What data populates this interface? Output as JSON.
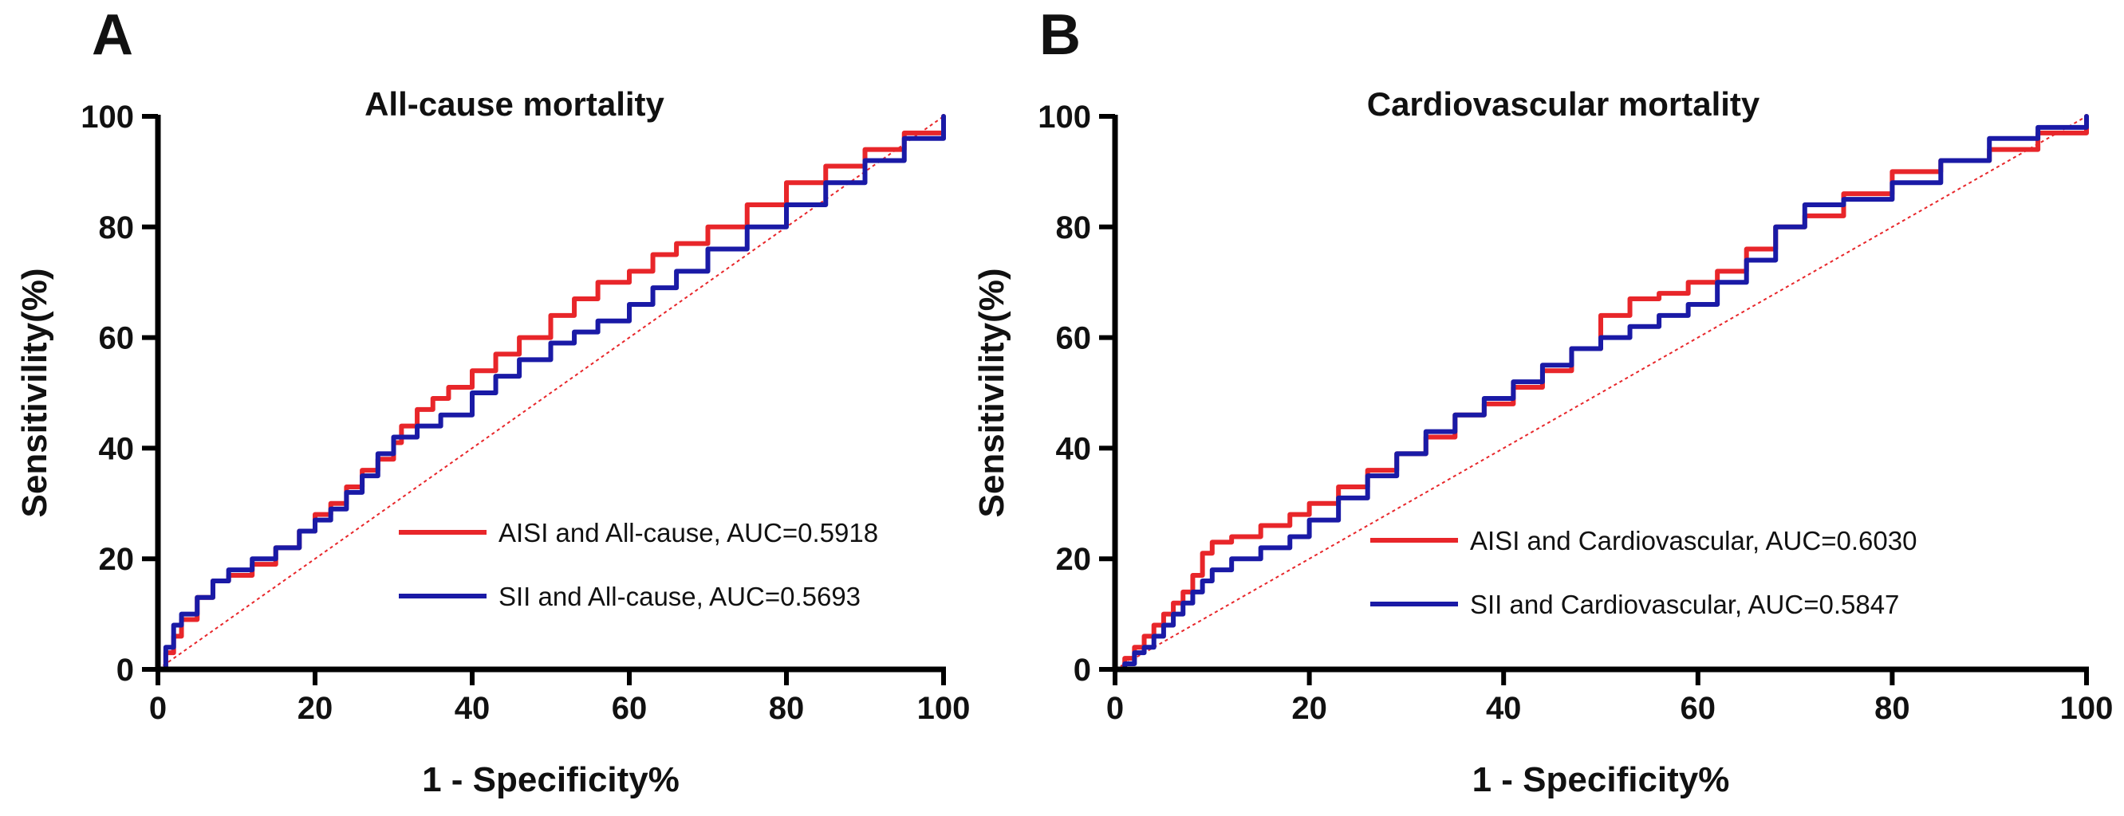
{
  "chart_data": [
    {
      "type": "line",
      "panel": "A",
      "title": "All-cause mortality",
      "xlabel": "1 - Specificity%",
      "ylabel": "Sensitivility(%)",
      "xlim": [
        0,
        100
      ],
      "ylim": [
        0,
        100
      ],
      "xticks": [
        0,
        20,
        40,
        60,
        80,
        100
      ],
      "yticks": [
        0,
        20,
        40,
        60,
        80,
        100
      ],
      "legend_position": "lower-right",
      "grid": false,
      "reference_line": {
        "x": [
          0,
          100
        ],
        "y": [
          0,
          100
        ],
        "style": "dotted",
        "color": "#e8262a"
      },
      "series": [
        {
          "name": "AISI and All-cause, AUC=0.5918",
          "color": "#e8262a",
          "x": [
            0,
            1,
            2,
            3,
            5,
            7,
            9,
            12,
            15,
            18,
            20,
            22,
            24,
            26,
            28,
            30,
            31,
            33,
            35,
            37,
            40,
            43,
            46,
            50,
            53,
            56,
            60,
            63,
            66,
            70,
            75,
            80,
            85,
            90,
            95,
            100
          ],
          "y": [
            0,
            3,
            6,
            9,
            13,
            16,
            17,
            19,
            22,
            25,
            28,
            30,
            33,
            36,
            38,
            41,
            44,
            47,
            49,
            51,
            54,
            57,
            60,
            64,
            67,
            70,
            72,
            75,
            77,
            80,
            84,
            88,
            91,
            94,
            97,
            100
          ]
        },
        {
          "name": "SII and All-cause, AUC=0.5693",
          "color": "#1a1aa6",
          "x": [
            0,
            1,
            2,
            3,
            5,
            7,
            9,
            12,
            15,
            18,
            20,
            22,
            24,
            26,
            28,
            30,
            33,
            36,
            40,
            43,
            46,
            50,
            53,
            56,
            60,
            63,
            66,
            70,
            75,
            80,
            85,
            90,
            95,
            100
          ],
          "y": [
            0,
            4,
            8,
            10,
            13,
            16,
            18,
            20,
            22,
            25,
            27,
            29,
            32,
            35,
            39,
            42,
            44,
            46,
            50,
            53,
            56,
            59,
            61,
            63,
            66,
            69,
            72,
            76,
            80,
            84,
            88,
            92,
            96,
            100
          ]
        }
      ]
    },
    {
      "type": "line",
      "panel": "B",
      "title": "Cardiovascular mortality",
      "xlabel": "1 - Specificity%",
      "ylabel": "Sensitivility(%)",
      "xlim": [
        0,
        100
      ],
      "ylim": [
        0,
        100
      ],
      "xticks": [
        0,
        20,
        40,
        60,
        80,
        100
      ],
      "yticks": [
        0,
        20,
        40,
        60,
        80,
        100
      ],
      "legend_position": "lower-right",
      "grid": false,
      "reference_line": {
        "x": [
          0,
          100
        ],
        "y": [
          0,
          100
        ],
        "style": "dotted",
        "color": "#e8262a"
      },
      "series": [
        {
          "name": "AISI and Cardiovascular, AUC=0.6030",
          "color": "#e8262a",
          "x": [
            0,
            1,
            2,
            3,
            4,
            5,
            6,
            7,
            8,
            9,
            10,
            12,
            15,
            18,
            20,
            23,
            26,
            29,
            32,
            35,
            38,
            41,
            44,
            47,
            50,
            53,
            56,
            59,
            62,
            65,
            68,
            71,
            75,
            80,
            85,
            90,
            95,
            100
          ],
          "y": [
            0,
            2,
            4,
            6,
            8,
            10,
            12,
            14,
            17,
            21,
            23,
            24,
            26,
            28,
            30,
            33,
            36,
            39,
            42,
            46,
            48,
            51,
            54,
            58,
            64,
            67,
            68,
            70,
            72,
            76,
            80,
            82,
            86,
            90,
            92,
            94,
            97,
            100
          ]
        },
        {
          "name": "SII and Cardiovascular, AUC=0.5847",
          "color": "#1a1aa6",
          "x": [
            0,
            1,
            2,
            3,
            4,
            5,
            6,
            7,
            8,
            9,
            10,
            12,
            15,
            18,
            20,
            23,
            26,
            29,
            32,
            35,
            38,
            41,
            44,
            47,
            50,
            53,
            56,
            59,
            62,
            65,
            68,
            71,
            75,
            80,
            85,
            90,
            95,
            100
          ],
          "y": [
            0,
            1,
            3,
            4,
            6,
            8,
            10,
            12,
            14,
            16,
            18,
            20,
            22,
            24,
            27,
            31,
            35,
            39,
            43,
            46,
            49,
            52,
            55,
            58,
            60,
            62,
            64,
            66,
            70,
            74,
            80,
            84,
            85,
            88,
            92,
            96,
            98,
            100
          ]
        }
      ]
    }
  ]
}
